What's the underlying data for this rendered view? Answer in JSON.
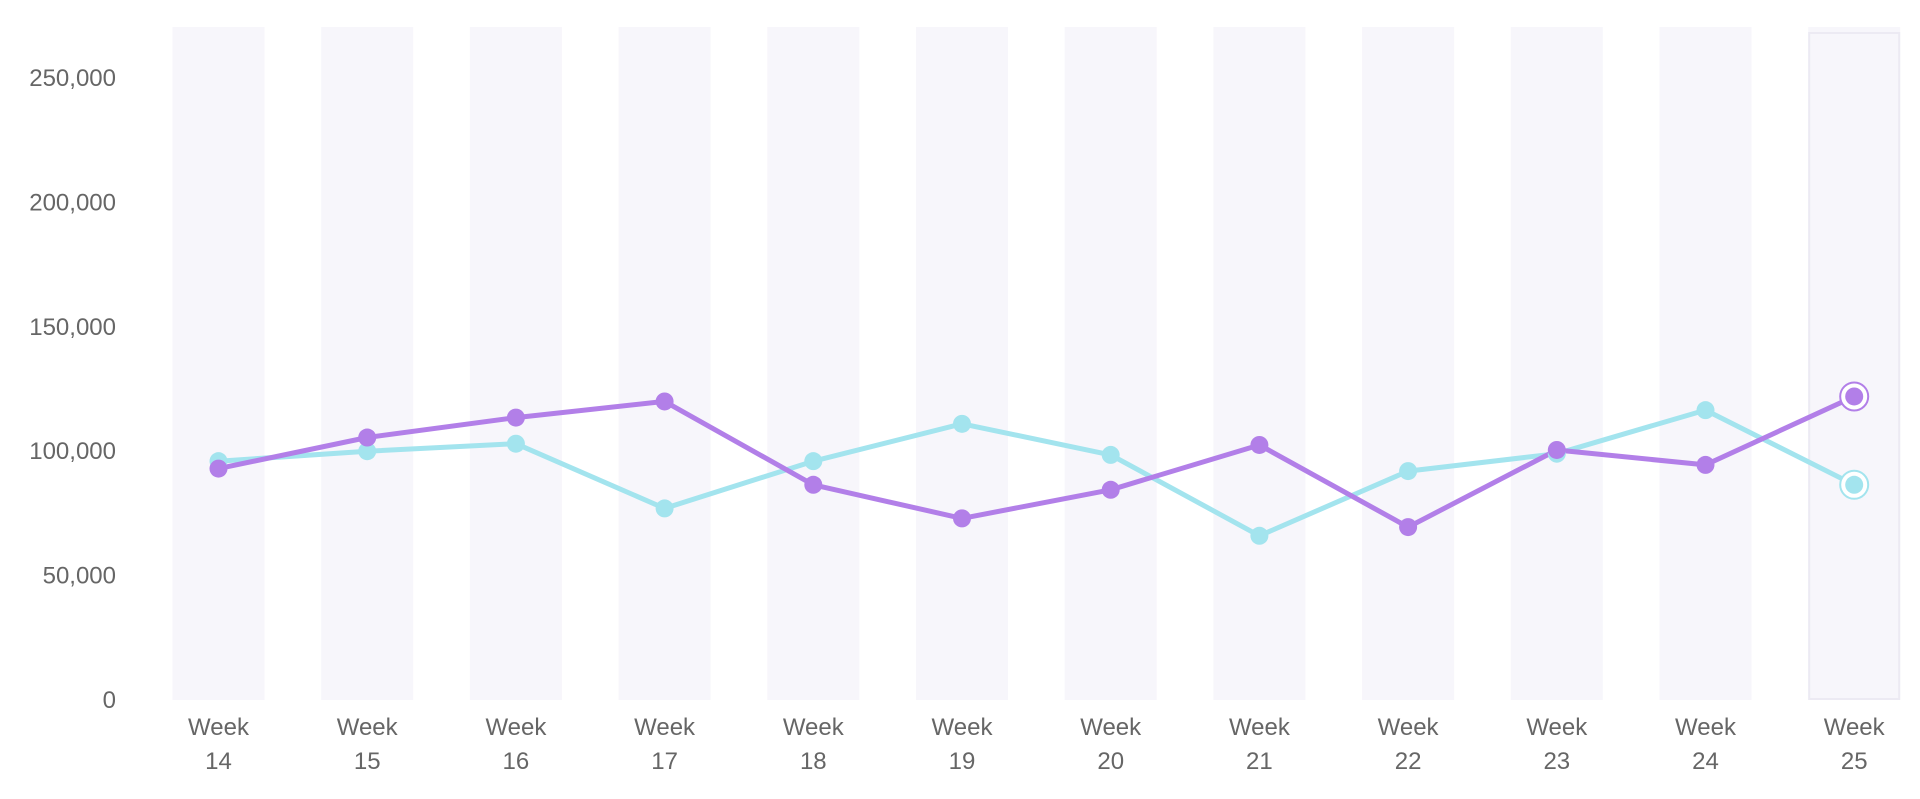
{
  "chart_data": {
    "type": "line",
    "categories": [
      "Week 14",
      "Week 15",
      "Week 16",
      "Week 17",
      "Week 18",
      "Week 19",
      "Week 20",
      "Week 21",
      "Week 22",
      "Week 23",
      "Week 24",
      "Week 25"
    ],
    "series": [
      {
        "color": "#a3e4ee",
        "values": [
          96000,
          100000,
          103000,
          77000,
          96000,
          111000,
          98500,
          66000,
          92000,
          99000,
          116500,
          86500
        ]
      },
      {
        "color": "#b27fe8",
        "values": [
          93000,
          105500,
          113500,
          120000,
          86500,
          73000,
          84500,
          102500,
          69500,
          100500,
          94500,
          122000
        ]
      }
    ],
    "y_ticks": [
      "0",
      "50,000",
      "100,000",
      "150,000",
      "200,000",
      "250,000"
    ],
    "ylim": [
      0,
      250000
    ],
    "highlighted_category": "Week 25",
    "grid": false,
    "band_color": "#f7f6fb",
    "label_color": "#666666"
  }
}
